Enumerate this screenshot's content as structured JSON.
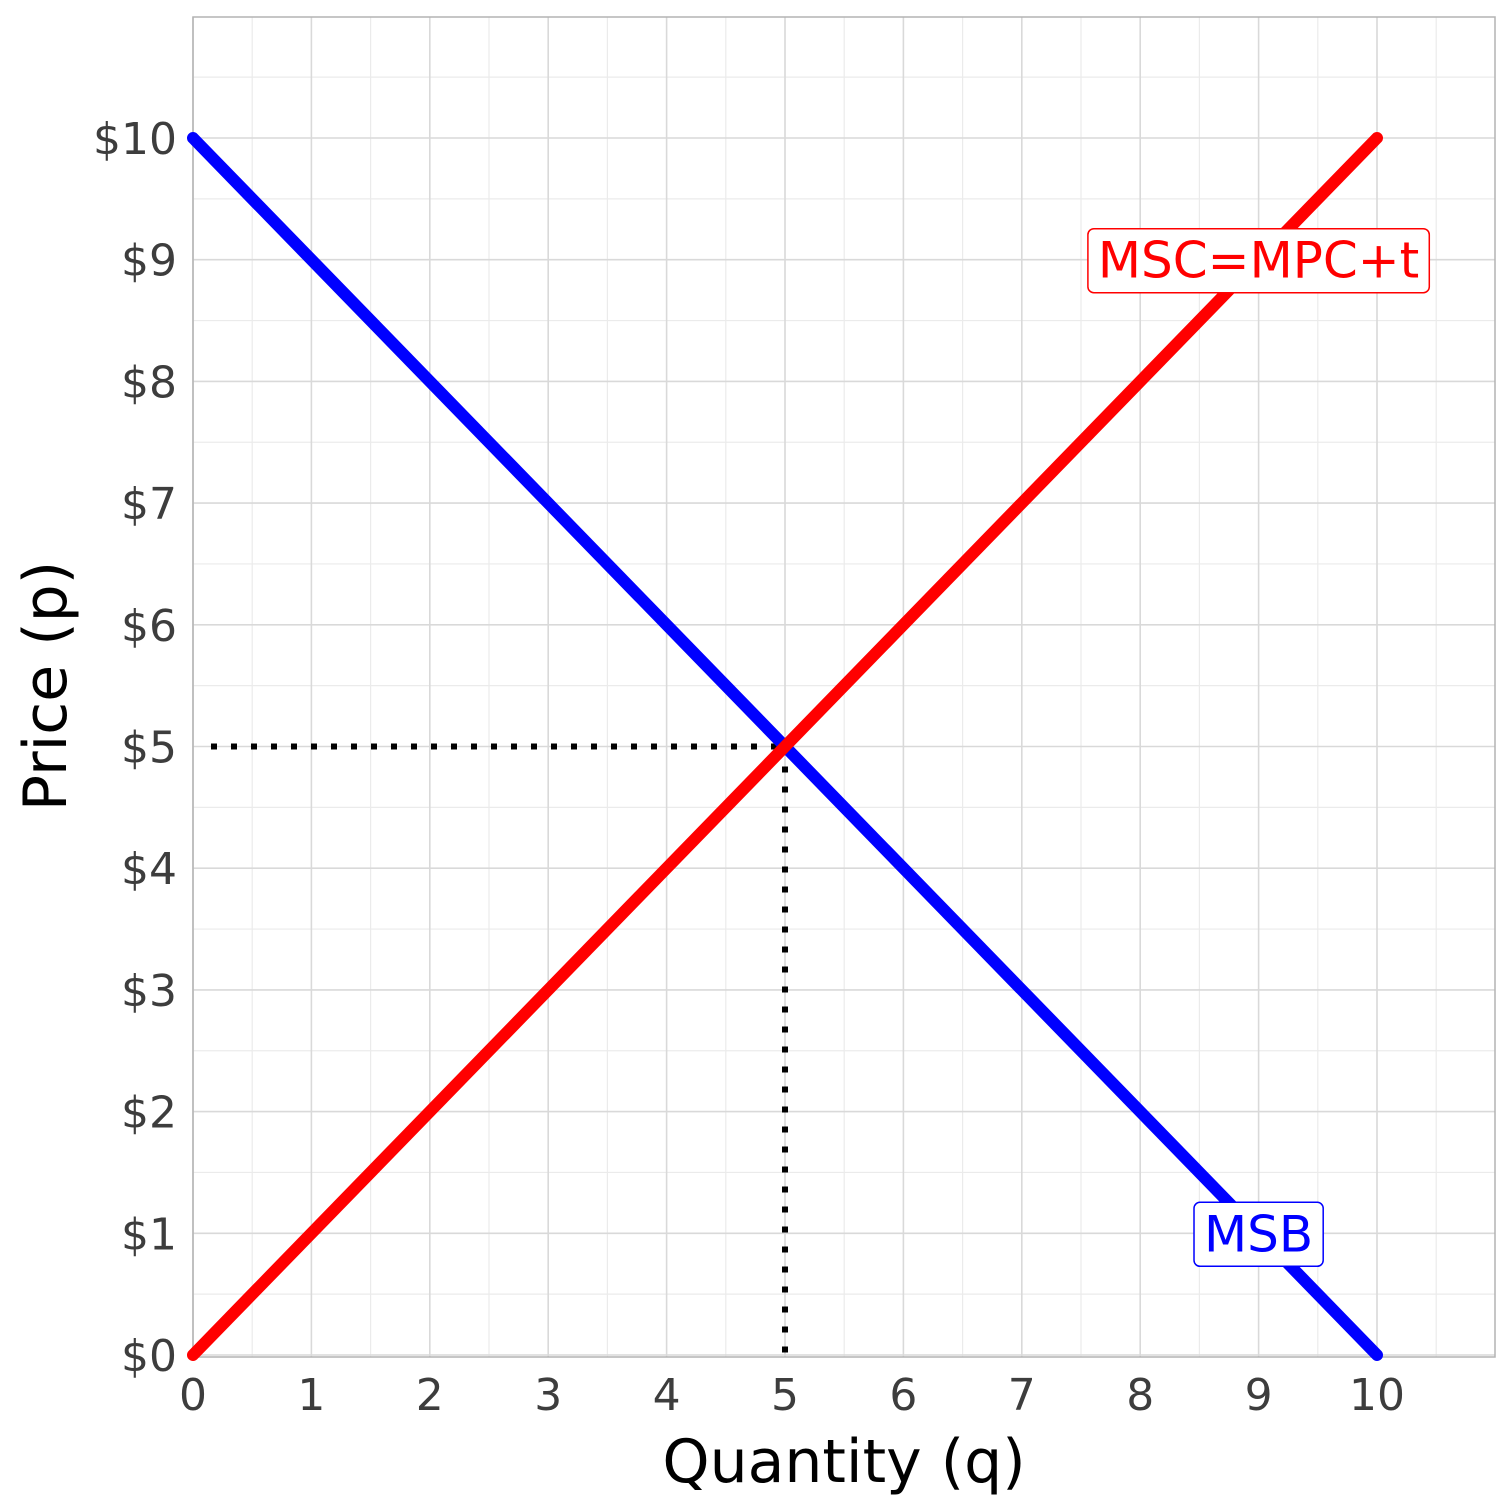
{
  "chart_data": {
    "type": "line",
    "xlabel": "Quantity (q)",
    "ylabel": "Price (p)",
    "xlim": [
      0,
      11
    ],
    "ylim": [
      0,
      11
    ],
    "x_ticks": [
      0,
      1,
      2,
      3,
      4,
      5,
      6,
      7,
      8,
      9,
      10
    ],
    "x_tick_labels": [
      "0",
      "1",
      "2",
      "3",
      "4",
      "5",
      "6",
      "7",
      "8",
      "9",
      "10"
    ],
    "y_ticks": [
      0,
      1,
      2,
      3,
      4,
      5,
      6,
      7,
      8,
      9,
      10
    ],
    "y_tick_labels": [
      "$0",
      "$1",
      "$2",
      "$3",
      "$4",
      "$5",
      "$6",
      "$7",
      "$8",
      "$9",
      "$10"
    ],
    "grid": true,
    "series": [
      {
        "name": "MSB",
        "color": "#0000ff",
        "points": [
          [
            0,
            10
          ],
          [
            10,
            0
          ]
        ],
        "label_at": [
          9,
          1
        ]
      },
      {
        "name": "MSC=MPC+t",
        "color": "#ff0000",
        "points": [
          [
            0,
            0
          ],
          [
            10,
            10
          ]
        ],
        "label_at": [
          9,
          9
        ]
      }
    ],
    "equilibrium": {
      "q": 5,
      "p": 5,
      "line_style": "dotted",
      "color": "#000000"
    }
  }
}
